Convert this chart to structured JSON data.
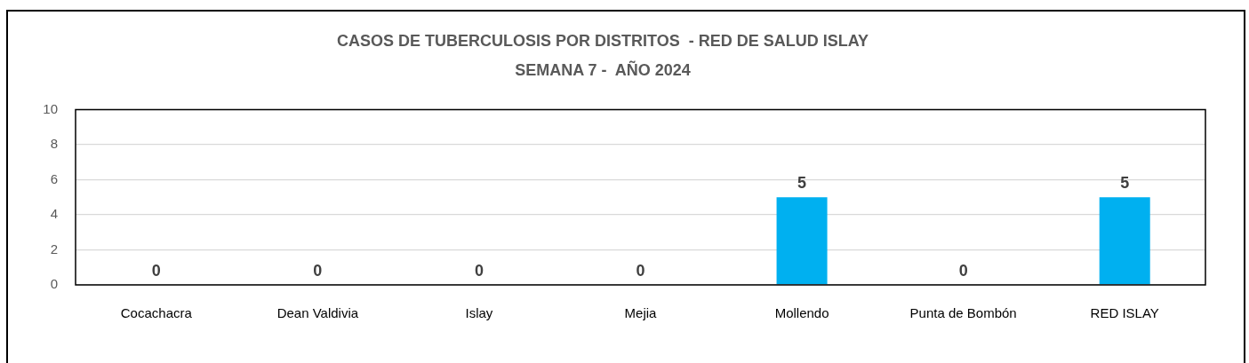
{
  "chart_data": {
    "type": "bar",
    "title": "CASOS DE TUBERCULOSIS POR DISTRITOS  - RED DE SALUD ISLAY\nSEMANA 7 -  AÑO 2024",
    "categories": [
      "Cocachacra",
      "Dean Valdivia",
      "Islay",
      "Mejia",
      "Mollendo",
      "Punta de Bombón",
      "RED ISLAY"
    ],
    "values": [
      0,
      0,
      0,
      0,
      5,
      0,
      5
    ],
    "color": "#00b0f0",
    "ylim": [
      0,
      10
    ],
    "yticks": [
      0,
      2,
      4,
      6,
      8,
      10
    ],
    "grid": "y",
    "data_labels": true
  }
}
